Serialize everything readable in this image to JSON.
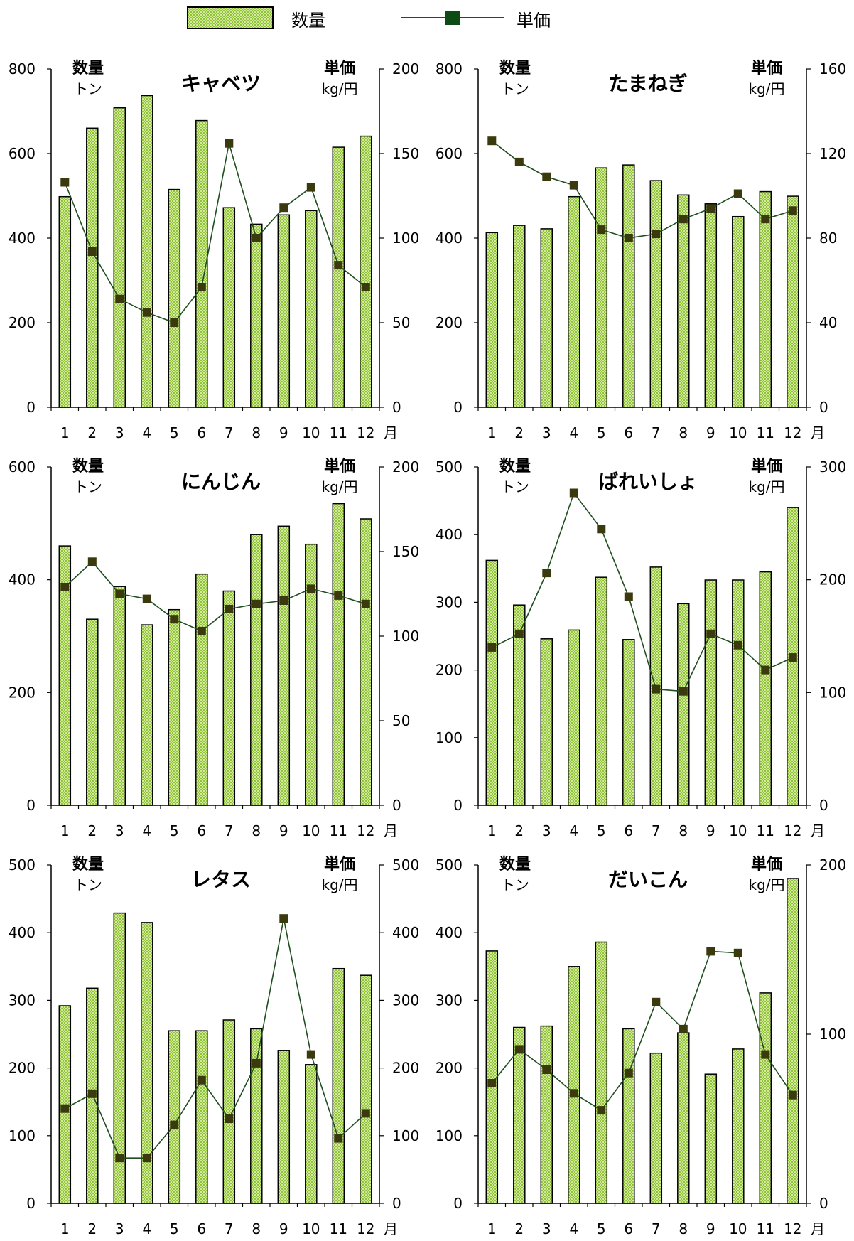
{
  "legend": {
    "bar_label": "数量",
    "line_label": "単価"
  },
  "colors": {
    "bar_fill": "#d4ea9a",
    "bar_check": "#8fc33c",
    "bar_stroke": "#000000",
    "line": "#1f4f1f",
    "marker": "#3b3a0e",
    "axis": "#000000"
  },
  "chart_data": [
    {
      "type": "bar+line",
      "title": "キャベツ",
      "left_label": [
        "数量",
        "トン"
      ],
      "right_label": [
        "単価",
        "kg/円"
      ],
      "categories": [
        "1",
        "2",
        "3",
        "4",
        "5",
        "6",
        "7",
        "8",
        "9",
        "10",
        "11",
        "12"
      ],
      "x_unit": "月",
      "ylim_left": [
        0,
        800
      ],
      "yticks_left": [
        0,
        200,
        400,
        600,
        800
      ],
      "ylim_right": [
        0,
        200
      ],
      "yticks_right": [
        0,
        50,
        100,
        150,
        200
      ],
      "series": [
        {
          "name": "数量",
          "type": "bar",
          "axis": "left",
          "values": [
            498,
            660,
            708,
            737,
            515,
            678,
            472,
            433,
            455,
            465,
            615,
            641
          ]
        },
        {
          "name": "単価",
          "type": "line",
          "axis": "right",
          "values": [
            133,
            92,
            64,
            56,
            50,
            71,
            156,
            100,
            118,
            130,
            84,
            71
          ]
        }
      ]
    },
    {
      "type": "bar+line",
      "title": "たまねぎ",
      "left_label": [
        "数量",
        "トン"
      ],
      "right_label": [
        "単価",
        "kg/円"
      ],
      "categories": [
        "1",
        "2",
        "3",
        "4",
        "5",
        "6",
        "7",
        "8",
        "9",
        "10",
        "11",
        "12"
      ],
      "x_unit": "月",
      "ylim_left": [
        0,
        800
      ],
      "yticks_left": [
        0,
        200,
        400,
        600,
        800
      ],
      "ylim_right": [
        0,
        160
      ],
      "yticks_right": [
        0,
        40,
        80,
        120,
        160
      ],
      "series": [
        {
          "name": "数量",
          "type": "bar",
          "axis": "left",
          "values": [
            413,
            430,
            422,
            498,
            566,
            573,
            536,
            502,
            481,
            451,
            510,
            499
          ]
        },
        {
          "name": "単価",
          "type": "line",
          "axis": "right",
          "values": [
            126,
            116,
            109,
            105,
            84,
            80,
            82,
            89,
            94,
            101,
            89,
            93
          ]
        }
      ]
    },
    {
      "type": "bar+line",
      "title": "にんじん",
      "left_label": [
        "数量",
        "トン"
      ],
      "right_label": [
        "単価",
        "kg/円"
      ],
      "categories": [
        "1",
        "2",
        "3",
        "4",
        "5",
        "6",
        "7",
        "8",
        "9",
        "10",
        "11",
        "12"
      ],
      "x_unit": "月",
      "ylim_left": [
        0,
        600
      ],
      "yticks_left": [
        0,
        200,
        400,
        600
      ],
      "ylim_right": [
        0,
        200
      ],
      "yticks_right": [
        0,
        50,
        100,
        150,
        200
      ],
      "series": [
        {
          "name": "数量",
          "type": "bar",
          "axis": "left",
          "values": [
            460,
            330,
            388,
            320,
            347,
            410,
            380,
            480,
            495,
            463,
            535,
            508
          ]
        },
        {
          "name": "単価",
          "type": "line",
          "axis": "right",
          "values": [
            129,
            144,
            125,
            122,
            110,
            103,
            116,
            119,
            121,
            128,
            124,
            119
          ]
        }
      ]
    },
    {
      "type": "bar+line",
      "title": "ばれいしょ",
      "left_label": [
        "数量",
        "トン"
      ],
      "right_label": [
        "単価",
        "kg/円"
      ],
      "categories": [
        "1",
        "2",
        "3",
        "4",
        "5",
        "6",
        "7",
        "8",
        "9",
        "10",
        "11",
        "12"
      ],
      "x_unit": "月",
      "ylim_left": [
        0,
        500
      ],
      "yticks_left": [
        0,
        100,
        200,
        300,
        400,
        500
      ],
      "ylim_right": [
        0,
        300
      ],
      "yticks_right": [
        0,
        100,
        200,
        300
      ],
      "series": [
        {
          "name": "数量",
          "type": "bar",
          "axis": "left",
          "values": [
            362,
            296,
            246,
            259,
            337,
            245,
            352,
            298,
            333,
            333,
            345,
            440
          ]
        },
        {
          "name": "単価",
          "type": "line",
          "axis": "right",
          "values": [
            140,
            152,
            206,
            277,
            245,
            185,
            103,
            101,
            152,
            142,
            120,
            131
          ]
        }
      ]
    },
    {
      "type": "bar+line",
      "title": "レタス",
      "left_label": [
        "数量",
        "トン"
      ],
      "right_label": [
        "単価",
        "kg/円"
      ],
      "categories": [
        "1",
        "2",
        "3",
        "4",
        "5",
        "6",
        "7",
        "8",
        "9",
        "10",
        "11",
        "12"
      ],
      "x_unit": "月",
      "ylim_left": [
        0,
        500
      ],
      "yticks_left": [
        0,
        100,
        200,
        300,
        400,
        500
      ],
      "ylim_right": [
        0,
        500
      ],
      "yticks_right": [
        0,
        100,
        200,
        300,
        400,
        500
      ],
      "series": [
        {
          "name": "数量",
          "type": "bar",
          "axis": "left",
          "values": [
            292,
            318,
            429,
            415,
            255,
            255,
            271,
            258,
            226,
            205,
            347,
            337
          ]
        },
        {
          "name": "単価",
          "type": "line",
          "axis": "right",
          "values": [
            140,
            162,
            67,
            67,
            116,
            182,
            125,
            207,
            421,
            220,
            96,
            133
          ]
        }
      ]
    },
    {
      "type": "bar+line",
      "title": "だいこん",
      "left_label": [
        "数量",
        "トン"
      ],
      "right_label": [
        "単価",
        "kg/円"
      ],
      "categories": [
        "1",
        "2",
        "3",
        "4",
        "5",
        "6",
        "7",
        "8",
        "9",
        "10",
        "11",
        "12"
      ],
      "x_unit": "月",
      "ylim_left": [
        0,
        500
      ],
      "yticks_left": [
        0,
        100,
        200,
        300,
        400,
        500
      ],
      "ylim_right": [
        0,
        200
      ],
      "yticks_right": [
        0,
        100,
        200
      ],
      "series": [
        {
          "name": "数量",
          "type": "bar",
          "axis": "left",
          "values": [
            373,
            260,
            262,
            350,
            386,
            258,
            222,
            252,
            191,
            228,
            311,
            480
          ]
        },
        {
          "name": "単価",
          "type": "line",
          "axis": "right",
          "values": [
            71,
            91,
            79,
            65,
            55,
            77,
            119,
            103,
            149,
            148,
            88,
            64
          ]
        }
      ]
    }
  ]
}
